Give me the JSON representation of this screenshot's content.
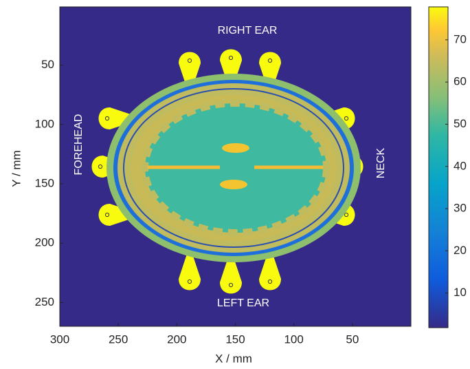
{
  "chart_data": {
    "type": "heatmap",
    "xlabel": "X / mm",
    "ylabel": "Y / mm",
    "annotations": [
      "RIGHT EAR",
      "LEFT EAR",
      "FOREHEAD",
      "NECK"
    ],
    "xlim": [
      300,
      0
    ],
    "xticks": [
      300,
      250,
      200,
      150,
      100,
      50
    ],
    "ylim": [
      1,
      270
    ],
    "yticks": [
      50,
      100,
      150,
      200,
      250
    ],
    "clim": [
      1.8,
      77.8
    ],
    "cticks": [
      10,
      20,
      30,
      40,
      50,
      60,
      70
    ]
  }
}
